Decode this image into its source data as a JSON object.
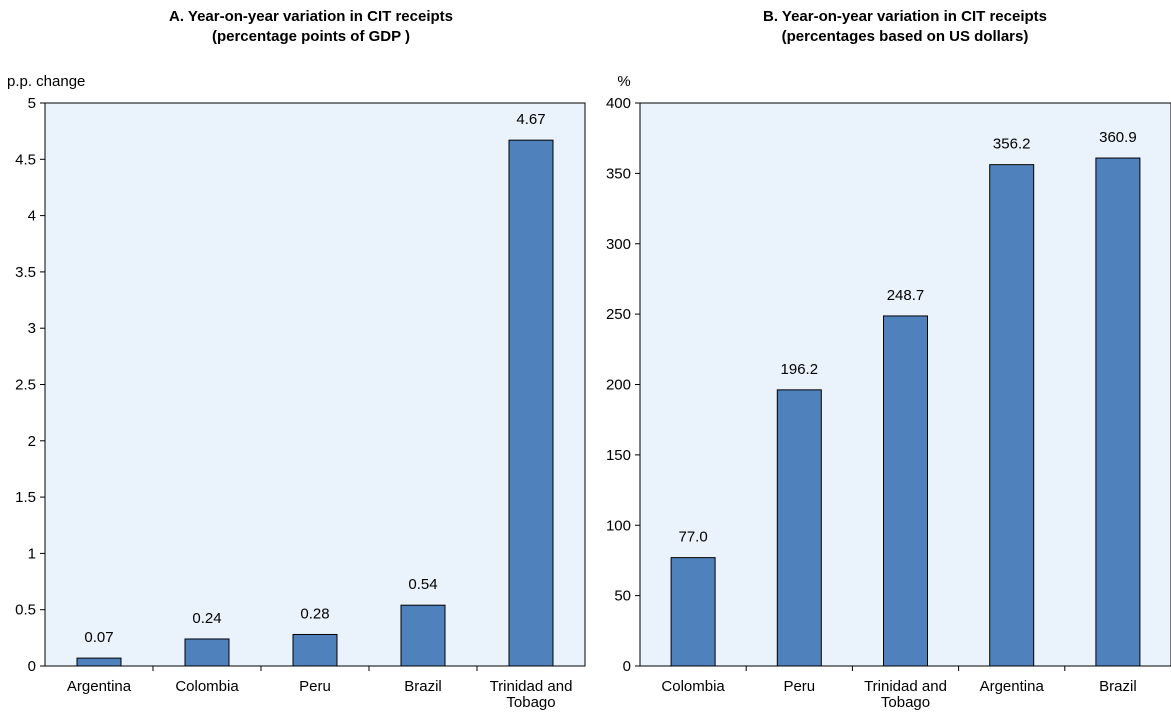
{
  "colors": {
    "bar": "#4f81bd",
    "bar_stroke": "#000000",
    "plot_bg": "#eaf3fb",
    "grid": "#9d9d9d"
  },
  "chart_data": [
    {
      "type": "bar",
      "title_line1": "A. Year-on-year variation in CIT receipts",
      "title_line2": "(percentage points of GDP )",
      "ylabel": "p.p. change",
      "ylim": [
        0,
        5
      ],
      "yticks": [
        "0",
        "0.5",
        "1",
        "1.5",
        "2",
        "2.5",
        "3",
        "3.5",
        "4",
        "4.5",
        "5"
      ],
      "categories": [
        "Argentina",
        "Colombia",
        "Peru",
        "Brazil",
        "Trinidad and Tobago"
      ],
      "values": [
        0.07,
        0.24,
        0.28,
        0.54,
        4.67
      ],
      "data_labels": [
        "0.07",
        "0.24",
        "0.28",
        "0.54",
        "4.67"
      ],
      "grid": false
    },
    {
      "type": "bar",
      "title_line1": "B. Year-on-year variation in CIT receipts",
      "title_line2": "(percentages based on US dollars)",
      "ylabel": "%",
      "ylim": [
        0,
        400
      ],
      "yticks": [
        "0",
        "50",
        "100",
        "150",
        "200",
        "250",
        "300",
        "350",
        "400"
      ],
      "categories": [
        "Colombia",
        "Peru",
        "Trinidad and Tobago",
        "Argentina",
        "Brazil"
      ],
      "values": [
        77.0,
        196.2,
        248.7,
        356.2,
        360.9
      ],
      "data_labels": [
        "77.0",
        "196.2",
        "248.7",
        "356.2",
        "360.9"
      ],
      "grid": false
    }
  ]
}
